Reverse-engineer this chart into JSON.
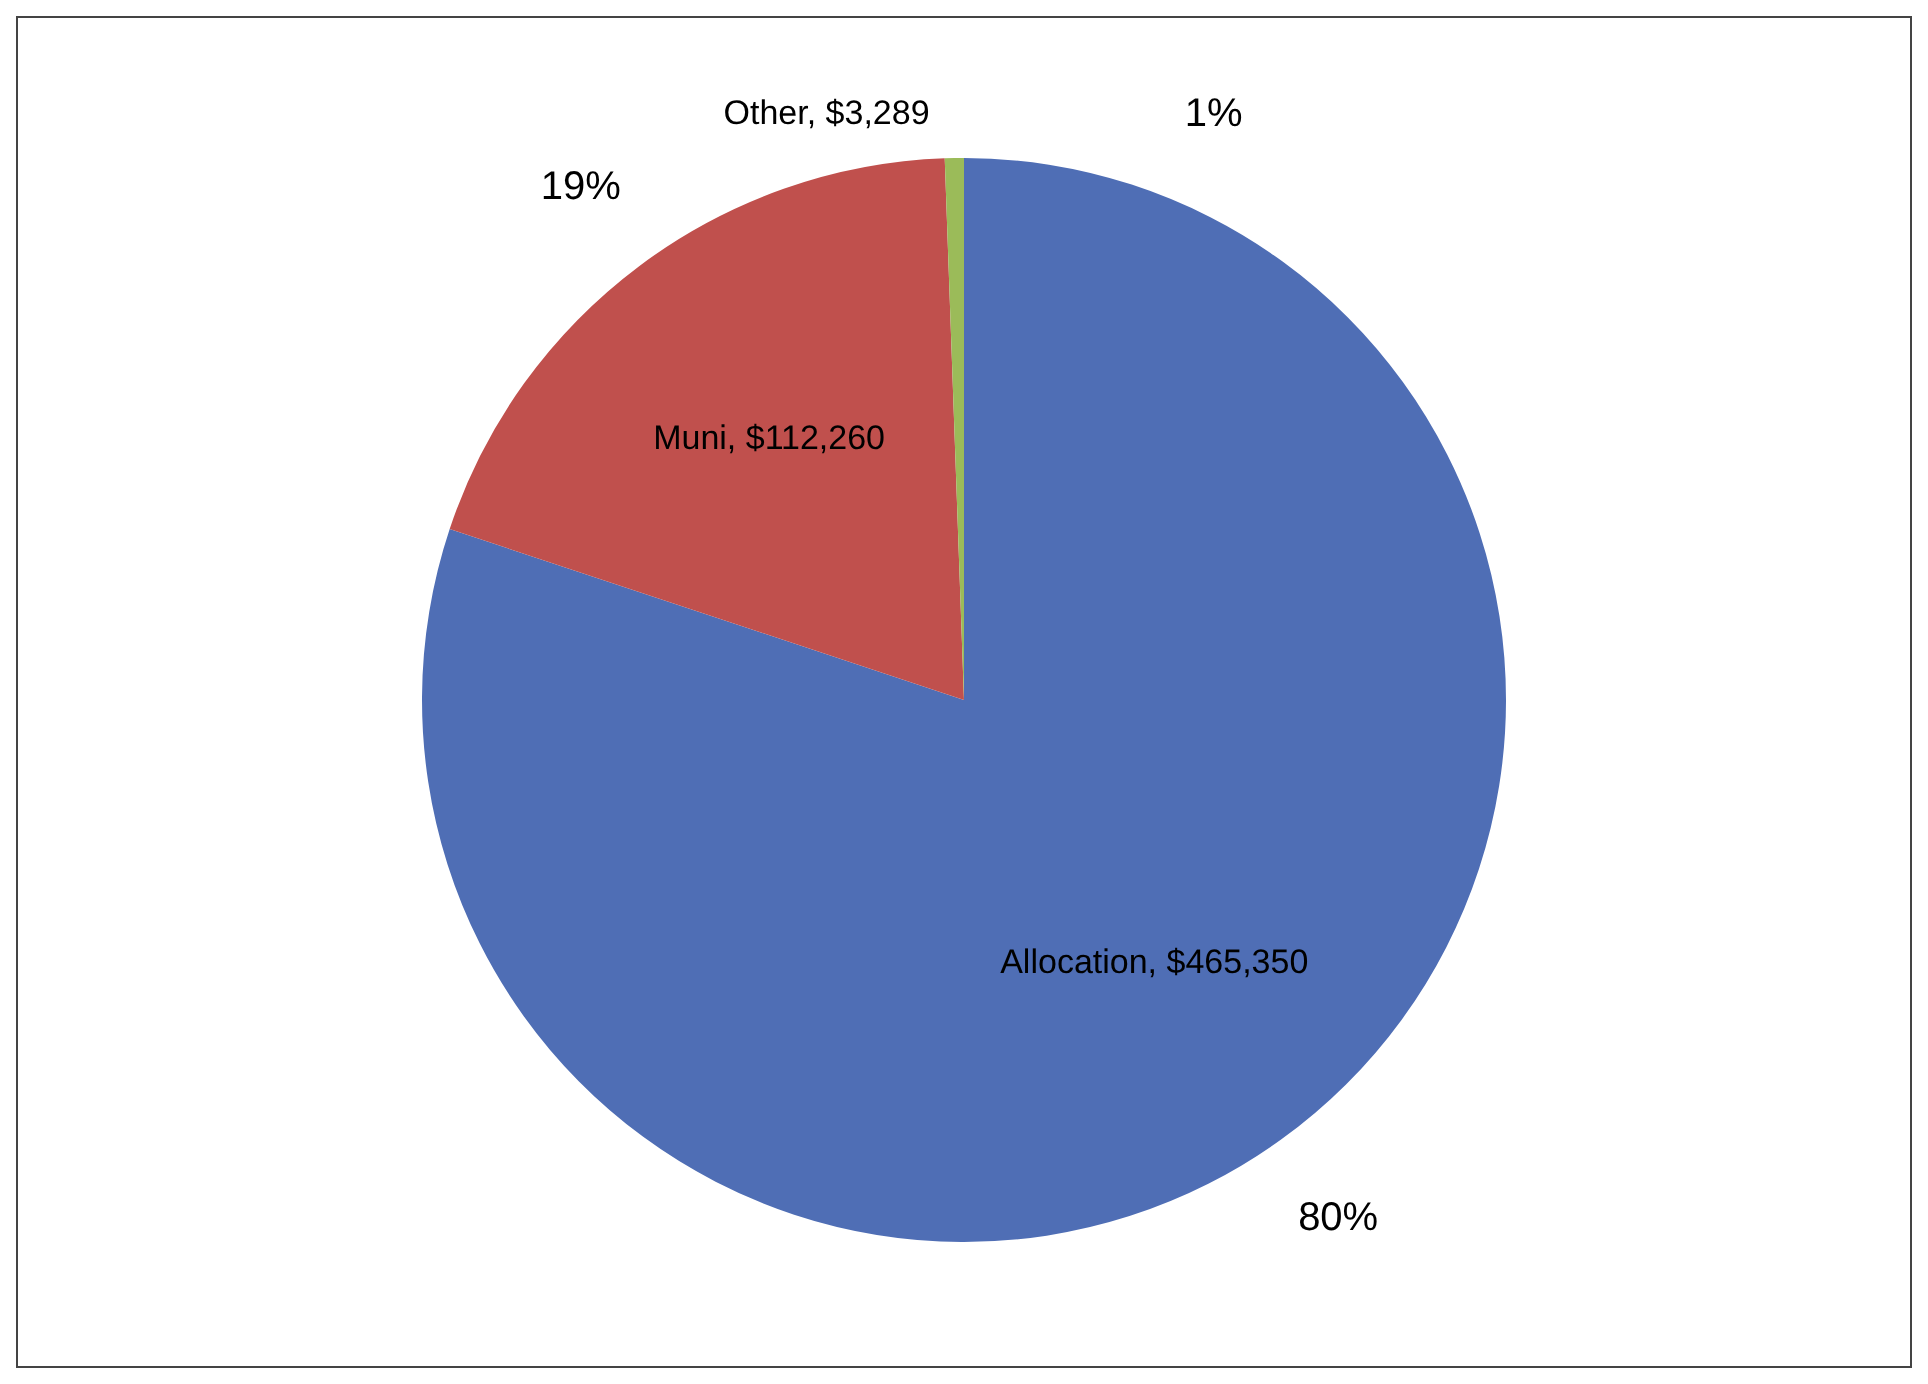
{
  "chart_data": {
    "type": "pie",
    "categories": [
      "Allocation",
      "Muni",
      "Other"
    ],
    "values": [
      465350,
      112260,
      3289
    ],
    "colors": [
      "#4f6eb5",
      "#c0504d",
      "#9bbb59"
    ],
    "value_labels": [
      "$465,350",
      "$112,260",
      "$3,289"
    ],
    "annotations": [
      "80%",
      "19%",
      "1%"
    ],
    "legend": false
  }
}
